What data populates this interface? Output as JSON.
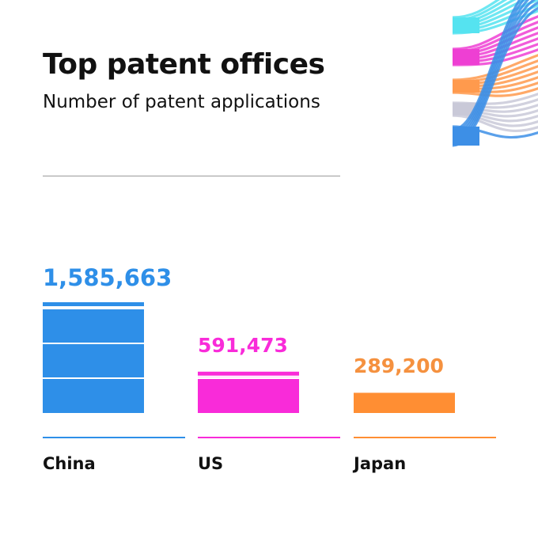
{
  "title": "Top patent offices",
  "subtitle": "Number of patent applications",
  "decoration_colors": [
    "#55e3f0",
    "#ee3fd3",
    "#ff9a4d",
    "#c9c9d8",
    "#3d8fe6"
  ],
  "chart_data": {
    "type": "bar",
    "title": "Top patent offices",
    "subtitle": "Number of patent applications",
    "categories": [
      "China",
      "US",
      "Japan"
    ],
    "values": [
      1585663,
      591473,
      289200
    ],
    "value_labels": [
      "1,585,663",
      "591,473",
      "289,200"
    ],
    "colors": [
      "#2e8fe8",
      "#f92bd9",
      "#ff8e33"
    ],
    "label_colors": [
      "#2e8fe8",
      "#f92bd9",
      "#f5913f"
    ],
    "xlabel": "",
    "ylabel": "",
    "grid": false,
    "legend": "none"
  }
}
